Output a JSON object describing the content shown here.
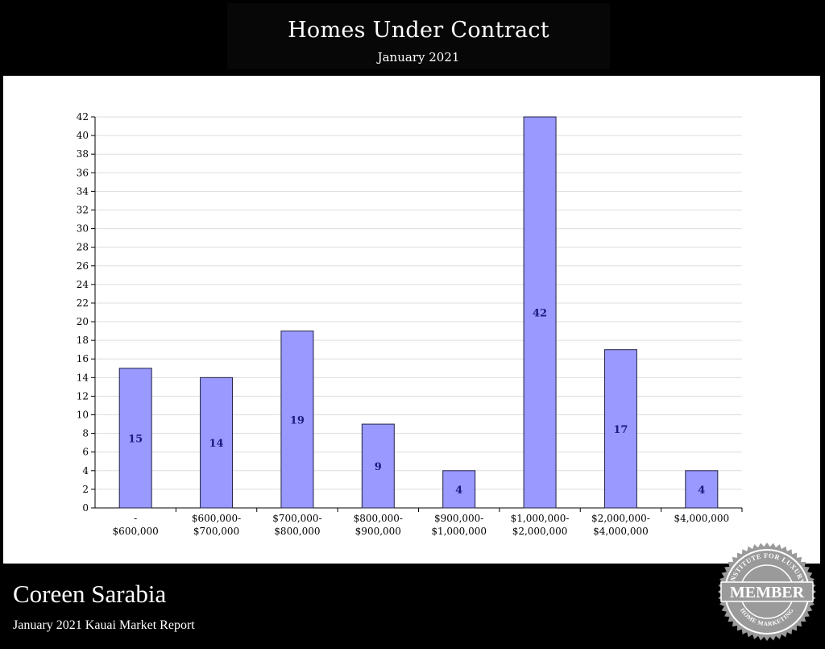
{
  "header": {
    "title": "Homes Under Contract",
    "subtitle": "January 2021"
  },
  "footer": {
    "agent_name": "Coreen Sarabia",
    "report_title": "January 2021 Kauai Market Report"
  },
  "badge": {
    "text": "MEMBER",
    "ring_text": "INSTITUTE FOR LUXURY HOME MARKETING"
  },
  "colors": {
    "bar_fill": "#9999ff",
    "bar_stroke": "#222244",
    "data_label": "#1a1a80",
    "grid": "#dddddd",
    "badge": "#9a9a9a"
  },
  "chart_data": {
    "type": "bar",
    "categories": [
      [
        "-",
        "$600,000"
      ],
      [
        "$600,000-",
        "$700,000"
      ],
      [
        "$700,000-",
        "$800,000"
      ],
      [
        "$800,000-",
        "$900,000"
      ],
      [
        "$900,000-",
        "$1,000,000"
      ],
      [
        "$1,000,000-",
        "$2,000,000"
      ],
      [
        "$2,000,000-",
        "$4,000,000"
      ],
      [
        "$4,000,000"
      ]
    ],
    "values": [
      15,
      14,
      19,
      9,
      4,
      42,
      17,
      4
    ],
    "ylim": [
      0,
      42
    ],
    "yticks": [
      0,
      2,
      4,
      6,
      8,
      10,
      12,
      14,
      16,
      18,
      20,
      22,
      24,
      26,
      28,
      30,
      32,
      34,
      36,
      38,
      40,
      42
    ],
    "grid": true,
    "data_labels": true
  }
}
